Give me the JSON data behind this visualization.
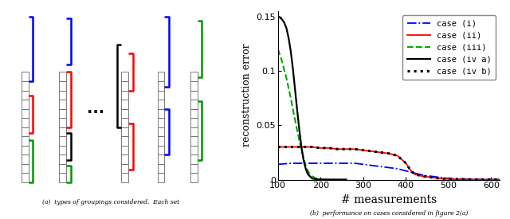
{
  "xlim": [
    100,
    620
  ],
  "ylim": [
    0,
    0.155
  ],
  "xlabel": "# measurements",
  "ylabel": "reconstruction error",
  "yticks": [
    0,
    0.05,
    0.1,
    0.15
  ],
  "ytick_labels": [
    "0",
    "0.05",
    "0.1",
    "0.15"
  ],
  "xticks": [
    100,
    200,
    300,
    400,
    500,
    600
  ],
  "legend_labels": [
    "case (i)",
    "case (ii)",
    "case (iii)",
    "case (iv a)",
    "case (iv b)"
  ],
  "case_i": {
    "color": "#0000ff",
    "linestyle": "-.",
    "linewidth": 1.3,
    "x": [
      100,
      130,
      160,
      180,
      200,
      220,
      240,
      260,
      280,
      300,
      320,
      340,
      360,
      380,
      400,
      420,
      440,
      460,
      480,
      500,
      520,
      540,
      560,
      580,
      600,
      620
    ],
    "y": [
      0.014,
      0.015,
      0.015,
      0.015,
      0.015,
      0.015,
      0.015,
      0.015,
      0.015,
      0.014,
      0.013,
      0.012,
      0.011,
      0.01,
      0.008,
      0.006,
      0.004,
      0.003,
      0.002,
      0.001,
      0.0008,
      0.0005,
      0.0003,
      0.0002,
      0.0001,
      5e-05
    ]
  },
  "case_ii": {
    "color": "#ff0000",
    "linestyle": "-",
    "linewidth": 1.3,
    "x": [
      100,
      130,
      160,
      180,
      200,
      220,
      240,
      260,
      280,
      300,
      320,
      340,
      360,
      380,
      400,
      410,
      420,
      440,
      460,
      480,
      500,
      520,
      540,
      560,
      580,
      600,
      620
    ],
    "y": [
      0.03,
      0.03,
      0.03,
      0.03,
      0.029,
      0.029,
      0.028,
      0.028,
      0.028,
      0.027,
      0.026,
      0.025,
      0.024,
      0.022,
      0.015,
      0.009,
      0.005,
      0.003,
      0.002,
      0.001,
      0.0005,
      0.0003,
      0.0002,
      0.0001,
      5e-05,
      3e-05,
      1e-05
    ]
  },
  "case_iii": {
    "color": "#00aa00",
    "linestyle": "--",
    "linewidth": 1.5,
    "x": [
      100,
      110,
      120,
      130,
      140,
      150,
      160,
      165,
      170,
      175,
      180,
      185,
      190,
      200,
      210
    ],
    "y": [
      0.12,
      0.108,
      0.093,
      0.075,
      0.055,
      0.036,
      0.02,
      0.013,
      0.008,
      0.005,
      0.003,
      0.002,
      0.001,
      0.0003,
      0.0001
    ]
  },
  "case_iva": {
    "color": "#000000",
    "linestyle": "-",
    "linewidth": 1.6,
    "x": [
      100,
      105,
      110,
      115,
      120,
      125,
      130,
      135,
      140,
      145,
      150,
      155,
      160,
      165,
      170,
      175,
      180,
      190,
      200,
      220,
      240,
      260
    ],
    "y": [
      0.15,
      0.149,
      0.147,
      0.144,
      0.139,
      0.13,
      0.118,
      0.102,
      0.083,
      0.064,
      0.046,
      0.03,
      0.018,
      0.01,
      0.005,
      0.003,
      0.001,
      0.0003,
      0.0001,
      5e-05,
      3e-05,
      1e-05
    ]
  },
  "case_ivb": {
    "color": "#000000",
    "linestyle": ":",
    "linewidth": 2.2,
    "x": [
      100,
      130,
      160,
      180,
      200,
      220,
      240,
      260,
      280,
      300,
      320,
      340,
      360,
      380,
      400,
      410,
      420,
      440,
      460,
      480,
      500,
      520,
      540,
      560,
      580,
      600,
      620
    ],
    "y": [
      0.03,
      0.03,
      0.03,
      0.03,
      0.029,
      0.029,
      0.028,
      0.028,
      0.028,
      0.027,
      0.026,
      0.025,
      0.024,
      0.022,
      0.015,
      0.009,
      0.005,
      0.003,
      0.002,
      0.001,
      0.0005,
      0.0003,
      0.0002,
      0.0001,
      5e-05,
      3e-05,
      1e-05
    ]
  },
  "figure_width": 6.4,
  "figure_height": 2.75,
  "dpi": 100
}
